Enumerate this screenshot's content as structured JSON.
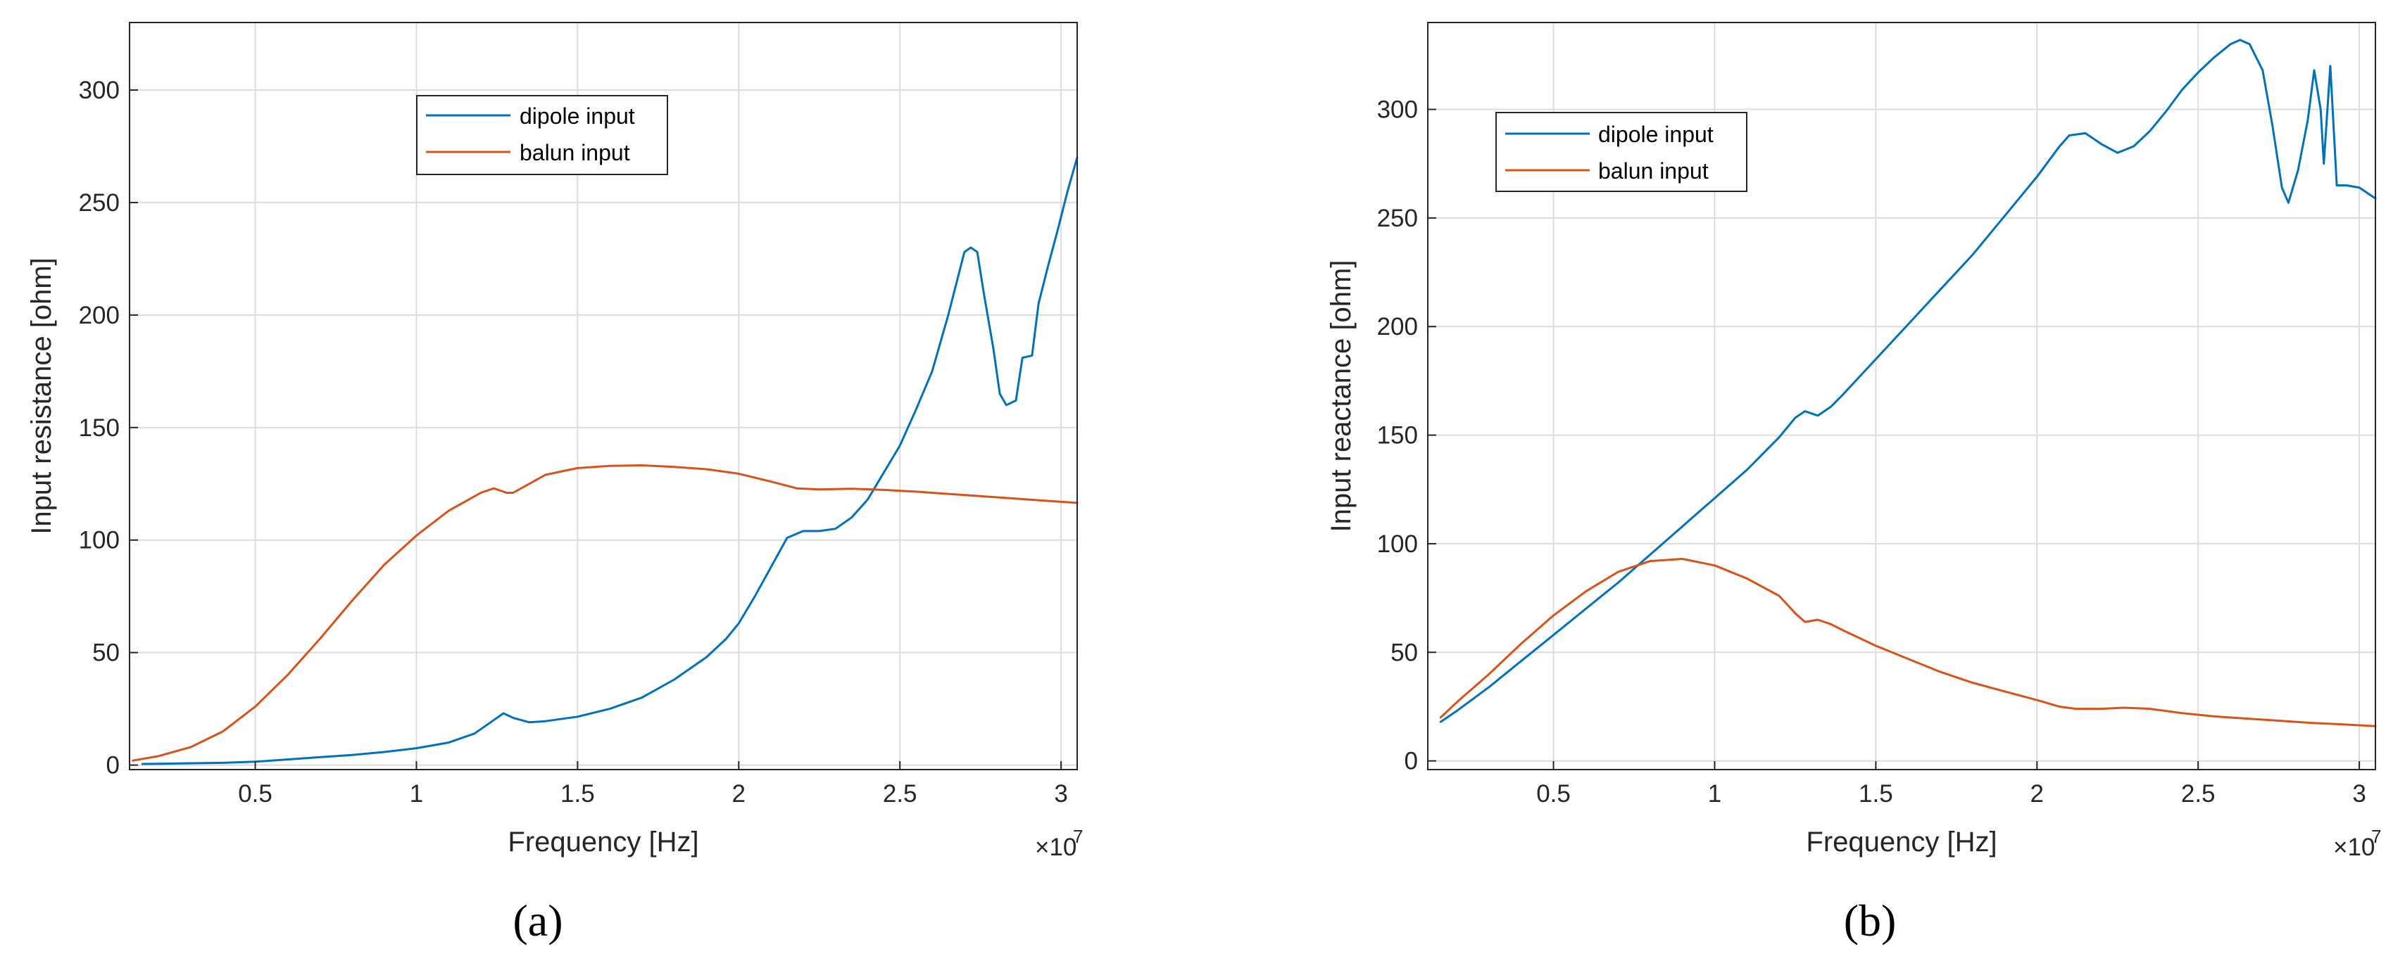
{
  "colors": {
    "dipole": "#0072BD",
    "balun": "#D95319",
    "grid": "#dcdcdc",
    "axis": "#262626"
  },
  "chart_data": [
    {
      "type": "line",
      "panel_label": "a",
      "caption": "(a)",
      "xlabel": "Frequency [Hz]",
      "ylabel": "Input resistance [ohm]",
      "x_exponent_label": "×10",
      "x_exponent_power": "7",
      "xlim": [
        1.1,
        30.5
      ],
      "ylim": [
        -2,
        330
      ],
      "xticks": [
        5,
        10,
        15,
        20,
        25,
        30
      ],
      "xtick_labels": [
        "0.5",
        "1",
        "1.5",
        "2",
        "2.5",
        "3"
      ],
      "yticks": [
        0,
        50,
        100,
        150,
        200,
        250,
        300
      ],
      "ytick_labels": [
        "0",
        "50",
        "100",
        "150",
        "200",
        "250",
        "300"
      ],
      "grid": true,
      "legend_placement": "upper-center",
      "series": [
        {
          "name": "dipole input",
          "color_key": "dipole",
          "points": [
            [
              1.5,
              0.5
            ],
            [
              2,
              0.6
            ],
            [
              3,
              0.8
            ],
            [
              4,
              1
            ],
            [
              5,
              1.5
            ],
            [
              6,
              2.5
            ],
            [
              7,
              3.5
            ],
            [
              8,
              4.5
            ],
            [
              9,
              5.8
            ],
            [
              10,
              7.5
            ],
            [
              11,
              10
            ],
            [
              11.8,
              14
            ],
            [
              12.3,
              19
            ],
            [
              12.7,
              23
            ],
            [
              13,
              21
            ],
            [
              13.5,
              19
            ],
            [
              14,
              19.5
            ],
            [
              15,
              21.5
            ],
            [
              16,
              25
            ],
            [
              17,
              30
            ],
            [
              18,
              38
            ],
            [
              19,
              48
            ],
            [
              19.6,
              56
            ],
            [
              20,
              63
            ],
            [
              20.5,
              75
            ],
            [
              21,
              88
            ],
            [
              21.5,
              101
            ],
            [
              22,
              104
            ],
            [
              22.5,
              104
            ],
            [
              23,
              105
            ],
            [
              23.5,
              110
            ],
            [
              24,
              118
            ],
            [
              24.5,
              130
            ],
            [
              25,
              142
            ],
            [
              25.5,
              158
            ],
            [
              26,
              175
            ],
            [
              26.5,
              200
            ],
            [
              27,
              228
            ],
            [
              27.2,
              230
            ],
            [
              27.4,
              228
            ],
            [
              27.6,
              210
            ],
            [
              27.9,
              185
            ],
            [
              28.1,
              165
            ],
            [
              28.3,
              160
            ],
            [
              28.6,
              162
            ],
            [
              28.8,
              181
            ],
            [
              29.1,
              182
            ],
            [
              29.3,
              205
            ],
            [
              29.6,
              222
            ],
            [
              29.9,
              238
            ],
            [
              30.2,
              255
            ],
            [
              30.5,
              270
            ]
          ]
        },
        {
          "name": "balun input",
          "color_key": "balun",
          "points": [
            [
              1.2,
              2
            ],
            [
              2,
              4
            ],
            [
              3,
              8
            ],
            [
              4,
              15
            ],
            [
              5,
              26
            ],
            [
              6,
              40
            ],
            [
              7,
              56
            ],
            [
              8,
              73
            ],
            [
              9,
              89
            ],
            [
              10,
              102
            ],
            [
              11,
              113
            ],
            [
              12,
              121
            ],
            [
              12.4,
              123
            ],
            [
              12.8,
              121
            ],
            [
              13,
              121
            ],
            [
              13.5,
              125
            ],
            [
              14,
              129
            ],
            [
              15,
              132
            ],
            [
              16,
              133
            ],
            [
              17,
              133.2
            ],
            [
              18,
              132.5
            ],
            [
              19,
              131.5
            ],
            [
              20,
              129.5
            ],
            [
              21,
              126
            ],
            [
              21.8,
              123
            ],
            [
              22.5,
              122.5
            ],
            [
              23.5,
              122.8
            ],
            [
              24.5,
              122.3
            ],
            [
              25.5,
              121.5
            ],
            [
              26.5,
              120.5
            ],
            [
              27.5,
              119.5
            ],
            [
              28.5,
              118.5
            ],
            [
              29.5,
              117.5
            ],
            [
              30.5,
              116.5
            ]
          ]
        }
      ]
    },
    {
      "type": "line",
      "panel_label": "b",
      "caption": "(b)",
      "xlabel": "Frequency [Hz]",
      "ylabel": "Input reactance [ohm]",
      "x_exponent_label": "×10",
      "x_exponent_power": "7",
      "xlim": [
        1.1,
        30.5
      ],
      "ylim": [
        -4,
        340
      ],
      "xticks": [
        5,
        10,
        15,
        20,
        25,
        30
      ],
      "xtick_labels": [
        "0.5",
        "1",
        "1.5",
        "2",
        "2.5",
        "3"
      ],
      "yticks": [
        0,
        50,
        100,
        150,
        200,
        250,
        300
      ],
      "ytick_labels": [
        "0",
        "50",
        "100",
        "150",
        "200",
        "250",
        "300"
      ],
      "grid": true,
      "legend_placement": "upper-left",
      "series": [
        {
          "name": "dipole input",
          "color_key": "dipole",
          "points": [
            [
              1.5,
              18
            ],
            [
              2,
              23
            ],
            [
              3,
              34
            ],
            [
              4,
              46
            ],
            [
              5,
              58
            ],
            [
              6,
              70
            ],
            [
              7,
              82
            ],
            [
              8,
              95
            ],
            [
              9,
              108
            ],
            [
              10,
              121
            ],
            [
              11,
              134
            ],
            [
              12,
              149
            ],
            [
              12.5,
              158
            ],
            [
              12.8,
              161
            ],
            [
              13.2,
              159
            ],
            [
              13.6,
              163
            ],
            [
              14,
              169
            ],
            [
              15,
              185
            ],
            [
              16,
              201
            ],
            [
              17,
              217
            ],
            [
              18,
              233
            ],
            [
              19,
              251
            ],
            [
              20,
              269
            ],
            [
              20.7,
              283
            ],
            [
              21,
              288
            ],
            [
              21.5,
              289
            ],
            [
              22,
              284
            ],
            [
              22.5,
              280
            ],
            [
              23,
              283
            ],
            [
              23.5,
              290
            ],
            [
              24,
              299
            ],
            [
              24.5,
              309
            ],
            [
              25,
              317
            ],
            [
              25.5,
              324
            ],
            [
              26,
              330
            ],
            [
              26.3,
              332
            ],
            [
              26.6,
              330
            ],
            [
              27,
              318
            ],
            [
              27.3,
              293
            ],
            [
              27.6,
              264
            ],
            [
              27.8,
              257
            ],
            [
              28.1,
              272
            ],
            [
              28.4,
              295
            ],
            [
              28.6,
              318
            ],
            [
              28.8,
              300
            ],
            [
              28.9,
              275
            ],
            [
              29.1,
              320
            ],
            [
              29.3,
              265
            ],
            [
              29.6,
              265
            ],
            [
              30,
              264
            ],
            [
              30.5,
              259
            ]
          ]
        },
        {
          "name": "balun input",
          "color_key": "balun",
          "points": [
            [
              1.5,
              20
            ],
            [
              2,
              27
            ],
            [
              3,
              40
            ],
            [
              4,
              54
            ],
            [
              5,
              67
            ],
            [
              6,
              78
            ],
            [
              7,
              87
            ],
            [
              8,
              92
            ],
            [
              9,
              93
            ],
            [
              10,
              90
            ],
            [
              11,
              84
            ],
            [
              12,
              76
            ],
            [
              12.5,
              68
            ],
            [
              12.8,
              64
            ],
            [
              13.2,
              65
            ],
            [
              13.6,
              63
            ],
            [
              14,
              60
            ],
            [
              15,
              53
            ],
            [
              16,
              47
            ],
            [
              17,
              41
            ],
            [
              18,
              36
            ],
            [
              19,
              32
            ],
            [
              20,
              28
            ],
            [
              20.7,
              25
            ],
            [
              21.2,
              24
            ],
            [
              22,
              24
            ],
            [
              22.7,
              24.5
            ],
            [
              23.5,
              24
            ],
            [
              24.5,
              22
            ],
            [
              25.5,
              20.5
            ],
            [
              26.5,
              19.5
            ],
            [
              27.5,
              18.5
            ],
            [
              28.5,
              17.5
            ],
            [
              29.5,
              16.8
            ],
            [
              30.5,
              16
            ]
          ]
        }
      ]
    }
  ]
}
